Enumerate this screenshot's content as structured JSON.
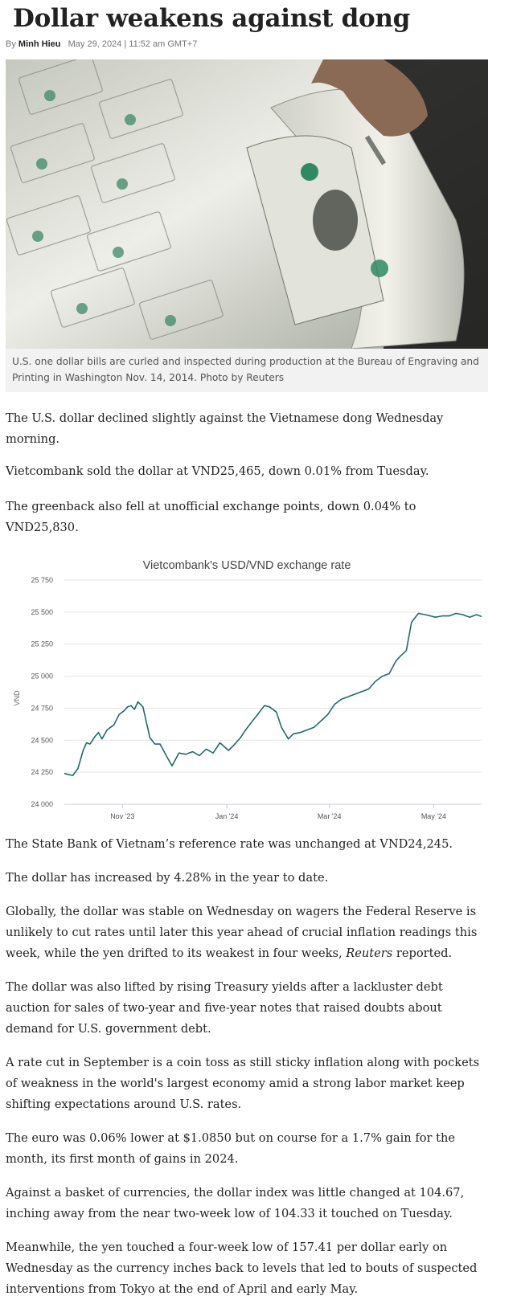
{
  "article": {
    "title": "Dollar weakens against dong",
    "by": "By",
    "author": "Minh Hieu",
    "date": "May 29, 2024 | 11:52 am GMT+7",
    "image": {
      "caption": "U.S. one dollar bills are curled and inspected during production at the Bureau of Engraving and Printing in Washington Nov. 14, 2014. Photo by Reuters",
      "palette": {
        "paper": "#e9eae2",
        "shadow": "#6f7468",
        "green_seal": "#2f8a64",
        "ink": "#2b2f2a",
        "hand": "#8a6a55",
        "background": "#1a1a18"
      }
    },
    "paragraphs": [
      "The U.S. dollar declined slightly against the Vietnamese dong Wednesday morning.",
      "Vietcombank sold the dollar at VND25,465, down 0.01% from Tuesday.",
      "The greenback also fell at unofficial exchange points, down 0.04% to VND25,830."
    ],
    "paragraphs_after": [
      "The State Bank of Vietnam’s reference rate was unchanged at VND24,245.",
      "The dollar has increased by 4.28% in the year to date."
    ],
    "p_global_1": "Globally, the dollar was stable on Wednesday on wagers the Federal Reserve is unlikely to cut rates until later this year ahead of crucial inflation readings this week, while the yen drifted to its weakest in four weeks, ",
    "p_global_source": "Reuters",
    "p_global_2": " reported.",
    "paragraphs_end": [
      "The dollar was also lifted by rising Treasury yields after a lackluster debt auction for sales of two-year and five-year notes that raised doubts about demand for U.S. government debt.",
      "A rate cut in September is a coin toss as still sticky inflation along with pockets of weakness in the world's largest economy amid a strong labor market keep shifting expectations around U.S. rates.",
      "The euro was 0.06% lower at $1.0850 but on course for a 1.7% gain for the month, its first month of gains in 2024.",
      "Against a basket of currencies, the dollar index was little changed at 104.67, inching away from the near two-week low of 104.33 it touched on Tuesday.",
      "Meanwhile, the yen touched a four-week low of 157.41 per dollar early on Wednesday as the currency inches back to levels that led to bouts of suspected interventions from Tokyo at the end of April and early May."
    ]
  },
  "chart_data": {
    "type": "line",
    "title": "Vietcombank's USD/VND exchange rate",
    "xlabel": "",
    "ylabel": "VND",
    "ylim": [
      24000,
      25750
    ],
    "y_ticks": [
      24000,
      24250,
      24500,
      24750,
      25000,
      25250,
      25500,
      25750
    ],
    "y_tick_labels": [
      "24 000",
      "24 250",
      "24 500",
      "24 750",
      "25 000",
      "25 250",
      "25 500",
      "25 750"
    ],
    "x_domain": [
      "2023-09-28",
      "2024-05-29"
    ],
    "x_ticks": [
      "2023-11-01",
      "2024-01-01",
      "2024-03-01",
      "2024-05-01"
    ],
    "x_tick_labels": [
      "Nov '23",
      "Jan '24",
      "Mar '24",
      "May '24"
    ],
    "grid": true,
    "line_color": "#1f6b6b",
    "series": [
      {
        "name": "",
        "x": [
          "2023-09-28",
          "2023-10-01",
          "2023-10-03",
          "2023-10-06",
          "2023-10-09",
          "2023-10-11",
          "2023-10-13",
          "2023-10-16",
          "2023-10-18",
          "2023-10-20",
          "2023-10-23",
          "2023-10-25",
          "2023-10-27",
          "2023-10-30",
          "2023-11-02",
          "2023-11-04",
          "2023-11-06",
          "2023-11-08",
          "2023-11-10",
          "2023-11-13",
          "2023-11-15",
          "2023-11-17",
          "2023-11-20",
          "2023-11-23",
          "2023-11-27",
          "2023-11-30",
          "2023-12-04",
          "2023-12-08",
          "2023-12-12",
          "2023-12-16",
          "2023-12-20",
          "2023-12-24",
          "2023-12-28",
          "2024-01-02",
          "2024-01-05",
          "2024-01-09",
          "2024-01-12",
          "2024-01-16",
          "2024-01-19",
          "2024-01-23",
          "2024-01-26",
          "2024-01-30",
          "2024-02-02",
          "2024-02-06",
          "2024-02-09",
          "2024-02-13",
          "2024-02-17",
          "2024-02-21",
          "2024-02-25",
          "2024-02-29",
          "2024-03-04",
          "2024-03-08",
          "2024-03-12",
          "2024-03-16",
          "2024-03-20",
          "2024-03-24",
          "2024-03-28",
          "2024-04-01",
          "2024-04-05",
          "2024-04-09",
          "2024-04-11",
          "2024-04-15",
          "2024-04-18",
          "2024-04-22",
          "2024-04-26",
          "2024-05-02",
          "2024-05-06",
          "2024-05-10",
          "2024-05-14",
          "2024-05-18",
          "2024-05-22",
          "2024-05-26",
          "2024-05-29"
        ],
        "y": [
          24240,
          24230,
          24225,
          24280,
          24420,
          24480,
          24470,
          24530,
          24560,
          24510,
          24580,
          24600,
          24620,
          24700,
          24730,
          24760,
          24770,
          24740,
          24800,
          24760,
          24640,
          24520,
          24470,
          24470,
          24370,
          24300,
          24400,
          24390,
          24410,
          24380,
          24430,
          24400,
          24480,
          24420,
          24460,
          24520,
          24580,
          24650,
          24700,
          24770,
          24760,
          24720,
          24600,
          24510,
          24550,
          24560,
          24580,
          24600,
          24650,
          24700,
          24780,
          24820,
          24840,
          24860,
          24880,
          24900,
          24960,
          25000,
          25020,
          25120,
          25150,
          25200,
          25420,
          25490,
          25480,
          25460,
          25470,
          25470,
          25490,
          25480,
          25460,
          25480,
          25465
        ]
      }
    ]
  }
}
